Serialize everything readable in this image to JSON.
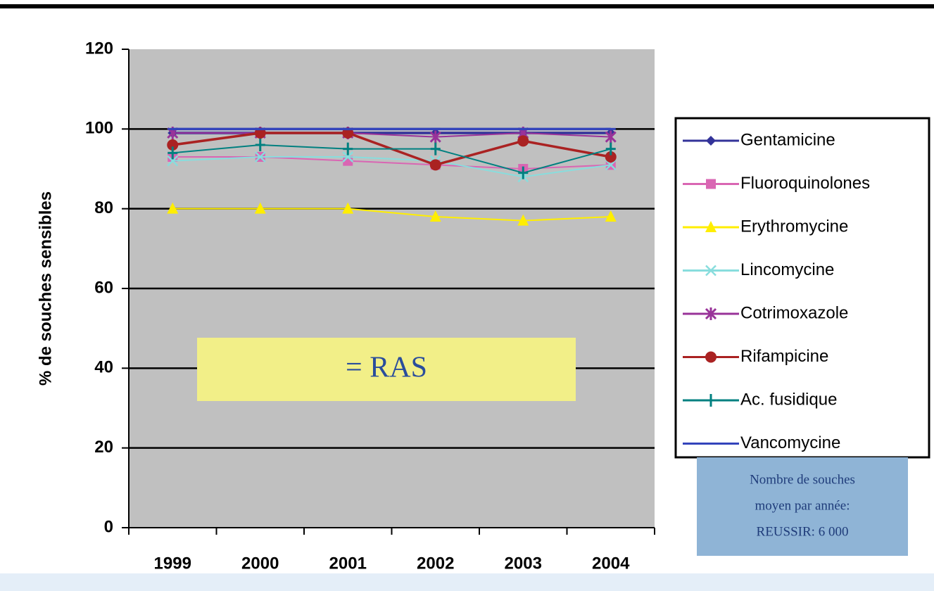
{
  "chart_data": {
    "type": "line",
    "y_axis_label": "% de souches sensibles",
    "categories": [
      "1999",
      "2000",
      "2001",
      "2002",
      "2003",
      "2004"
    ],
    "series": [
      {
        "name": "Gentamicine",
        "color": "#333399",
        "marker": "diamond",
        "values": [
          99,
          99,
          99,
          99,
          99,
          99
        ]
      },
      {
        "name": "Fluoroquinolones",
        "color": "#d966b3",
        "marker": "square",
        "values": [
          93,
          93,
          92,
          91,
          90,
          91
        ]
      },
      {
        "name": "Erythromycine",
        "color": "#ffee00",
        "marker": "triangle",
        "values": [
          80,
          80,
          80,
          78,
          77,
          78
        ]
      },
      {
        "name": "Lincomycine",
        "color": "#88dddd",
        "marker": "x",
        "values": [
          92,
          93,
          93,
          92,
          88,
          91
        ]
      },
      {
        "name": "Cotrimoxazole",
        "color": "#993399",
        "marker": "star",
        "values": [
          99,
          99,
          99,
          98,
          99,
          98
        ]
      },
      {
        "name": "Rifampicine",
        "color": "#aa2222",
        "marker": "circle",
        "values": [
          96,
          99,
          99,
          91,
          97,
          93
        ]
      },
      {
        "name": "Ac. fusidique",
        "color": "#008080",
        "marker": "plus",
        "values": [
          94,
          96,
          95,
          95,
          89,
          95
        ]
      },
      {
        "name": "Vancomycine",
        "color": "#3344bb",
        "marker": "dash",
        "values": [
          100,
          100,
          100,
          100,
          100,
          100
        ]
      }
    ],
    "ylim": [
      0,
      120
    ],
    "yticks": [
      0,
      20,
      40,
      60,
      80,
      100,
      120
    ],
    "grid": true,
    "legend": "right",
    "annotations": [
      "= RAS",
      "Nombre de souches",
      "moyen par année:",
      "REUSSIR: 6 000"
    ]
  }
}
